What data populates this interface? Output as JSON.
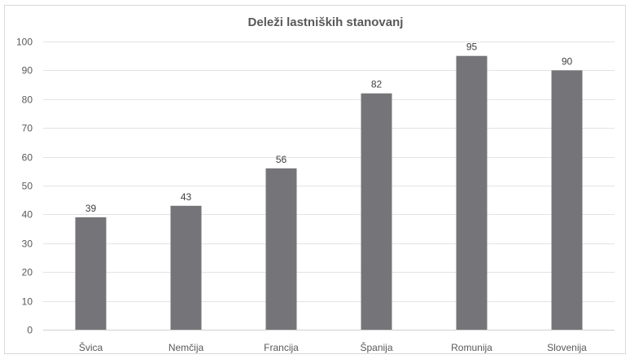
{
  "chart_data": {
    "type": "bar",
    "title": "Deleži lastniških stanovanj",
    "xlabel": "",
    "ylabel": "",
    "categories": [
      "Švica",
      "Nemčija",
      "Francija",
      "Španija",
      "Romunija",
      "Slovenija"
    ],
    "values": [
      39,
      43,
      56,
      82,
      95,
      90
    ],
    "ylim": [
      0,
      100
    ],
    "yticks": [
      "0",
      "10",
      "20",
      "30",
      "40",
      "50",
      "60",
      "70",
      "80",
      "90",
      "100"
    ],
    "data_labels": [
      "39",
      "43",
      "56",
      "82",
      "95",
      "90"
    ],
    "grid": true,
    "legend": "none",
    "bar_color": "#757579"
  }
}
